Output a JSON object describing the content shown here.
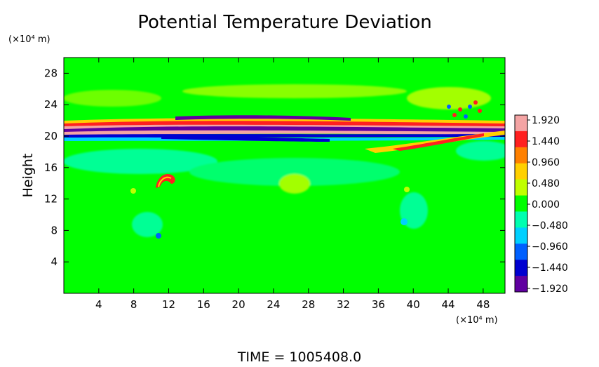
{
  "chart_data": {
    "type": "heatmap",
    "title": "Potential Temperature Deviation",
    "ylabel": "Height",
    "y_unit": "(×10⁴ m)",
    "x_unit": "(×10⁴ m)",
    "x_ticks": [
      "4",
      "8",
      "12",
      "16",
      "20",
      "24",
      "28",
      "32",
      "36",
      "40",
      "44",
      "48"
    ],
    "y_ticks": [
      "4",
      "8",
      "12",
      "16",
      "20",
      "24",
      "28"
    ],
    "xlim": [
      0,
      50.5
    ],
    "ylim": [
      0,
      30
    ],
    "colorbar": {
      "labels": [
        "1.920",
        "1.440",
        "0.960",
        "0.480",
        "0.000",
        "−0.480",
        "−0.960",
        "−1.440",
        "−1.920"
      ],
      "range": [
        -1.92,
        1.92
      ],
      "colors": [
        "#f4a4a4",
        "#ff2020",
        "#ff8000",
        "#ffd000",
        "#c0ff00",
        "#00ff00",
        "#00ffb0",
        "#00d0ff",
        "#0060ff",
        "#0000d0",
        "#6000a0"
      ]
    },
    "footer": "TIME = 1005408.0",
    "background_color": "#00ff00"
  }
}
